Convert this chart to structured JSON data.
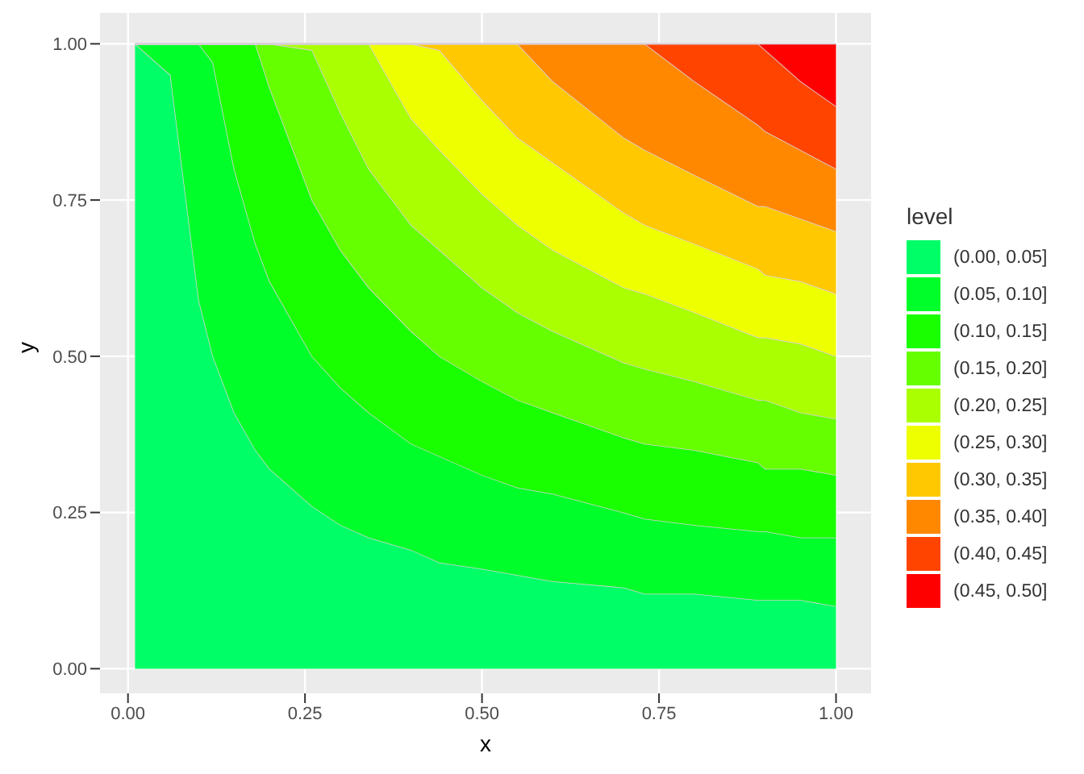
{
  "chart_data": {
    "type": "area",
    "stacked": true,
    "xlabel": "x",
    "ylabel": "y",
    "legend_title": "level",
    "legend": "right",
    "grid": true,
    "xlim": [
      -0.0395,
      1.0495
    ],
    "ylim": [
      -0.0395,
      1.0495
    ],
    "xticks": [
      {
        "value": 0,
        "label": "0.00"
      },
      {
        "value": 0.25,
        "label": "0.25"
      },
      {
        "value": 0.5,
        "label": "0.50"
      },
      {
        "value": 0.75,
        "label": "0.75"
      },
      {
        "value": 1,
        "label": "1.00"
      }
    ],
    "yticks": [
      {
        "value": 0,
        "label": "0.00"
      },
      {
        "value": 0.25,
        "label": "0.25"
      },
      {
        "value": 0.5,
        "label": "0.50"
      },
      {
        "value": 0.75,
        "label": "0.75"
      },
      {
        "value": 1,
        "label": "1.00"
      }
    ],
    "x": [
      0.01,
      0.06,
      0.1,
      0.12,
      0.15,
      0.18,
      0.2,
      0.26,
      0.3,
      0.34,
      0.4,
      0.44,
      0.5,
      0.55,
      0.6,
      0.7,
      0.73,
      0.8,
      0.89,
      0.9,
      0.95,
      1
    ],
    "series": [
      {
        "name": "(0.00, 0.05]",
        "color": "#00ff66",
        "values": [
          1,
          0.95,
          0.59,
          0.5,
          0.41,
          0.35,
          0.32,
          0.26,
          0.23,
          0.21,
          0.19,
          0.17,
          0.16,
          0.15,
          0.14,
          0.13,
          0.12,
          0.12,
          0.11,
          0.11,
          0.11,
          0.1
        ]
      },
      {
        "name": "(0.05, 0.10]",
        "color": "#00ff2a",
        "values": [
          0,
          0.05,
          0.41,
          0.47,
          0.39,
          0.33,
          0.3,
          0.24,
          0.22,
          0.2,
          0.17,
          0.17,
          0.15,
          0.14,
          0.14,
          0.12,
          0.12,
          0.11,
          0.11,
          0.11,
          0.1,
          0.11
        ]
      },
      {
        "name": "(0.10, 0.15]",
        "color": "#1aff00",
        "values": [
          0,
          0,
          0,
          0.03,
          0.2,
          0.32,
          0.31,
          0.25,
          0.22,
          0.2,
          0.18,
          0.16,
          0.15,
          0.14,
          0.13,
          0.12,
          0.12,
          0.12,
          0.11,
          0.1,
          0.11,
          0.1
        ]
      },
      {
        "name": "(0.15, 0.20]",
        "color": "#66ff00",
        "values": [
          0,
          0,
          0,
          0,
          0,
          0,
          0.07,
          0.24,
          0.22,
          0.19,
          0.17,
          0.17,
          0.15,
          0.14,
          0.13,
          0.12,
          0.12,
          0.11,
          0.1,
          0.11,
          0.09,
          0.09
        ]
      },
      {
        "name": "(0.20, 0.25]",
        "color": "#aaff00",
        "values": [
          0,
          0,
          0,
          0,
          0,
          0,
          0,
          0.01,
          0.11,
          0.2,
          0.17,
          0.16,
          0.15,
          0.14,
          0.13,
          0.12,
          0.12,
          0.11,
          0.1,
          0.1,
          0.11,
          0.1
        ]
      },
      {
        "name": "(0.25, 0.30]",
        "color": "#eeff00",
        "values": [
          0,
          0,
          0,
          0,
          0,
          0,
          0,
          0,
          0,
          0,
          0.12,
          0.16,
          0.15,
          0.14,
          0.14,
          0.12,
          0.11,
          0.11,
          0.11,
          0.1,
          0.1,
          0.1
        ]
      },
      {
        "name": "(0.30, 0.35]",
        "color": "#ffc800",
        "values": [
          0,
          0,
          0,
          0,
          0,
          0,
          0,
          0,
          0,
          0,
          0,
          0.01,
          0.09,
          0.15,
          0.13,
          0.12,
          0.12,
          0.11,
          0.1,
          0.11,
          0.1,
          0.1
        ]
      },
      {
        "name": "(0.35, 0.40]",
        "color": "#ff8800",
        "values": [
          0,
          0,
          0,
          0,
          0,
          0,
          0,
          0,
          0,
          0,
          0,
          0,
          0,
          0,
          0.06,
          0.15,
          0.17,
          0.15,
          0.13,
          0.12,
          0.11,
          0.1
        ]
      },
      {
        "name": "(0.40, 0.45]",
        "color": "#ff4400",
        "values": [
          0,
          0,
          0,
          0,
          0,
          0,
          0,
          0,
          0,
          0,
          0,
          0,
          0,
          0,
          0,
          0,
          0,
          0.06,
          0.13,
          0.13,
          0.11,
          0.1
        ]
      },
      {
        "name": "(0.45, 0.50]",
        "color": "#ff0000",
        "values": [
          0,
          0,
          0,
          0,
          0,
          0,
          0,
          0,
          0,
          0,
          0,
          0,
          0,
          0,
          0,
          0,
          0,
          0,
          0,
          0.01,
          0.06,
          0.1
        ]
      }
    ]
  }
}
